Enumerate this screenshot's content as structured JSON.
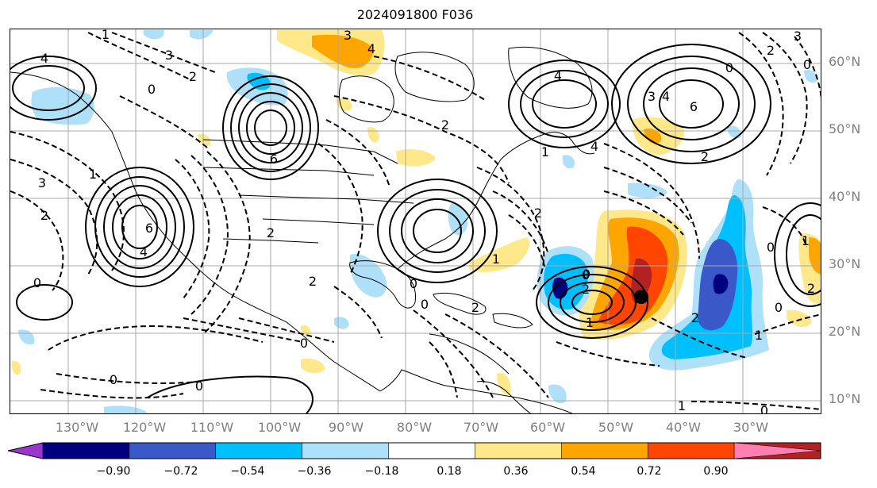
{
  "title": "2024091800 F036",
  "latitude_labels": [
    "60°N",
    "50°N",
    "40°N",
    "30°N",
    "20°N",
    "10°N"
  ],
  "longitude_labels": [
    "130°W",
    "120°W",
    "110°W",
    "100°W",
    "90°W",
    "80°W",
    "70°W",
    "60°W",
    "50°W",
    "40°W",
    "30°W"
  ],
  "colorbar": {
    "ticks": [
      "−0.90",
      "−0.72",
      "−0.54",
      "−0.36",
      "−0.18",
      "0.18",
      "0.36",
      "0.54",
      "0.72",
      "0.90"
    ],
    "colors": [
      "#9b35cf",
      "#000080",
      "#3a58c8",
      "#00bfff",
      "#aee0fa",
      "#ffffff",
      "#ffe88a",
      "#ffa500",
      "#ff4500",
      "#b22222",
      "#ff80b0"
    ]
  },
  "contour_labels": {
    "nw_top": "1",
    "nw_four": "4",
    "nw_small": "3",
    "nw_two": "2",
    "ne_top": "3",
    "ne_four": "4",
    "left_zero": "0",
    "gl_center": "6",
    "gl_two": "2",
    "left_three": "3",
    "left_two": "2",
    "low_w_center": "6",
    "low_w_four": "4",
    "sw_zero": "0",
    "sw_one": "1",
    "usa_two": "2",
    "se_two": "2",
    "se_zero": "0",
    "car_zero": "0",
    "car_zero_b": "0",
    "epac_zero": "0",
    "epac_zero_b": "0",
    "mid_zero_a": "0",
    "mid_one": "1",
    "storm_zero": "0",
    "storm_two": "2",
    "storm_one": "1",
    "atl_two_mid": "2",
    "atl_two_low": "2",
    "nat_three": "3",
    "nat_four": "4",
    "nat_six": "6",
    "nat_zero": "0",
    "nat_two": "2",
    "ne_corner_three": "3",
    "ne_corner_two": "2",
    "ne_corner_zero": "0",
    "far_right_zero": "0",
    "far_right_one": "1",
    "east_two": "2",
    "east_one": "1",
    "east_zero": "0",
    "bottom_one": "1",
    "bottom_zero": "0",
    "can_four": "4",
    "can_one": "1",
    "lab_four": "4",
    "sat_two": "2"
  }
}
